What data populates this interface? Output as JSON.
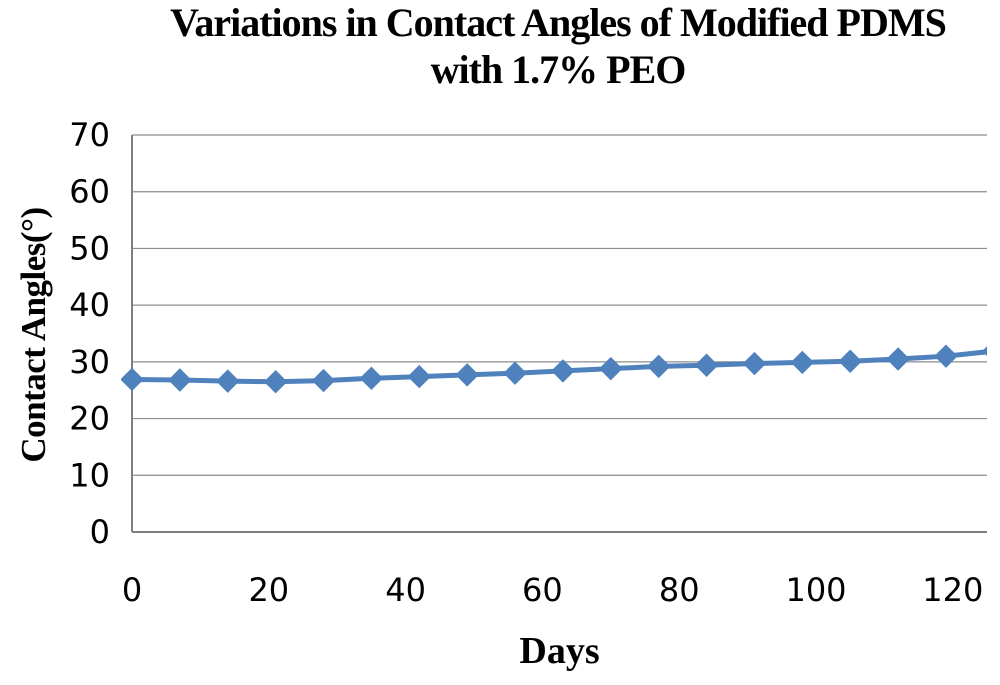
{
  "chart_data": {
    "type": "line",
    "title": "Variations in Contact Angles of Modified PDMS with 1.7% PEO",
    "title_lines": [
      "Variations in Contact Angles of Modified PDMS",
      "with 1.7% PEO"
    ],
    "xlabel": "Days",
    "ylabel": "Contact Angles(°)",
    "xlim": [
      0,
      125
    ],
    "ylim": [
      0,
      70
    ],
    "x_ticks": [
      0,
      20,
      40,
      60,
      80,
      100,
      120
    ],
    "y_ticks": [
      0,
      10,
      20,
      30,
      40,
      50,
      60,
      70
    ],
    "grid": "horizontal",
    "legend": "none",
    "series": [
      {
        "marker": "diamond",
        "color": "#4F81BD",
        "x": [
          0,
          7,
          14,
          21,
          28,
          35,
          42,
          49,
          56,
          63,
          70,
          77,
          84,
          91,
          98,
          105,
          112,
          119,
          126
        ],
        "y": [
          26.9,
          26.8,
          26.6,
          26.5,
          26.7,
          27.1,
          27.4,
          27.7,
          28.0,
          28.4,
          28.8,
          29.2,
          29.4,
          29.7,
          29.9,
          30.1,
          30.5,
          31.0,
          31.9
        ]
      }
    ],
    "colors": {
      "line": "#4F81BD",
      "gridline": "#8C8C8C",
      "axis": "#7F7F7F",
      "text": "#000000",
      "background": "#FFFFFF"
    }
  }
}
